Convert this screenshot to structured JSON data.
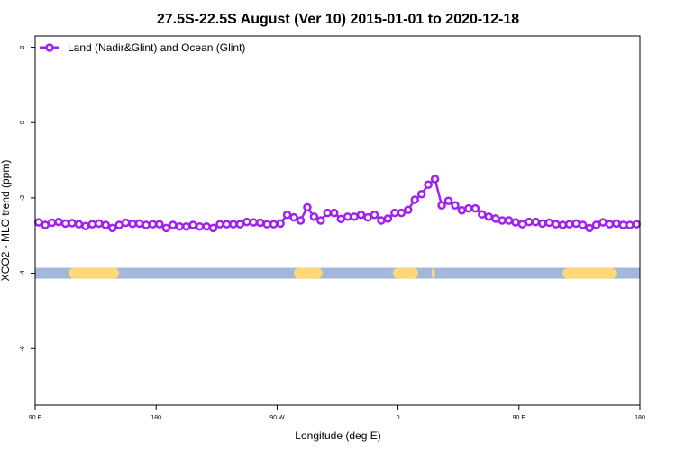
{
  "chart_data": {
    "type": "line",
    "title": "27.5S-22.5S August (Ver 10)   2015-01-01 to 2020-12-18",
    "xlabel": "Longitude (deg E)",
    "ylabel": "XCO2 - MLO trend (ppm)",
    "xlim": [
      90,
      450
    ],
    "ylim": [
      -7.5,
      2.3
    ],
    "x_ticks": [
      {
        "value": 90,
        "label": "90 E"
      },
      {
        "value": 162,
        "label": "180"
      },
      {
        "value": 234,
        "label": "90 W"
      },
      {
        "value": 306,
        "label": "0"
      },
      {
        "value": 378,
        "label": "90 E"
      },
      {
        "value": 450,
        "label": "180"
      }
    ],
    "y_ticks": [
      {
        "value": 2,
        "label": "2"
      },
      {
        "value": 0,
        "label": "0"
      },
      {
        "value": -2,
        "label": "-2"
      },
      {
        "value": -4,
        "label": "-4"
      },
      {
        "value": -6,
        "label": "-6"
      }
    ],
    "legend": {
      "position": "top-left"
    },
    "series": [
      {
        "name": "Land (Nadir&Glint) and Ocean (Glint)",
        "color": "#a020f0",
        "x": [
          92,
          96,
          100,
          104,
          108,
          112,
          116,
          120,
          124,
          128,
          132,
          136,
          140,
          144,
          148,
          152,
          156,
          160,
          164,
          168,
          172,
          176,
          180,
          184,
          188,
          192,
          196,
          200,
          204,
          208,
          212,
          216,
          220,
          224,
          228,
          232,
          236,
          240,
          244,
          248,
          252,
          256,
          260,
          264,
          268,
          272,
          276,
          280,
          284,
          288,
          292,
          296,
          300,
          304,
          308,
          312,
          316,
          320,
          324,
          328,
          332,
          336,
          340,
          344,
          348,
          352,
          356,
          360,
          364,
          368,
          372,
          376,
          380,
          384,
          388,
          392,
          396,
          400,
          404,
          408,
          412,
          416,
          420,
          424,
          428,
          432,
          436,
          440,
          444,
          448
        ],
        "values": [
          -2.65,
          -2.72,
          -2.66,
          -2.64,
          -2.68,
          -2.67,
          -2.7,
          -2.75,
          -2.7,
          -2.68,
          -2.72,
          -2.8,
          -2.72,
          -2.66,
          -2.69,
          -2.68,
          -2.72,
          -2.7,
          -2.7,
          -2.8,
          -2.72,
          -2.76,
          -2.76,
          -2.72,
          -2.76,
          -2.76,
          -2.8,
          -2.7,
          -2.7,
          -2.7,
          -2.7,
          -2.64,
          -2.65,
          -2.66,
          -2.7,
          -2.7,
          -2.68,
          -2.45,
          -2.52,
          -2.6,
          -2.25,
          -2.5,
          -2.6,
          -2.4,
          -2.4,
          -2.56,
          -2.5,
          -2.5,
          -2.45,
          -2.52,
          -2.45,
          -2.6,
          -2.55,
          -2.4,
          -2.4,
          -2.32,
          -2.05,
          -1.9,
          -1.65,
          -1.5,
          -2.2,
          -2.08,
          -2.2,
          -2.33,
          -2.28,
          -2.28,
          -2.44,
          -2.5,
          -2.55,
          -2.6,
          -2.6,
          -2.65,
          -2.7,
          -2.64,
          -2.64,
          -2.68,
          -2.66,
          -2.7,
          -2.72,
          -2.7,
          -2.68,
          -2.72,
          -2.8,
          -2.72,
          -2.65,
          -2.7,
          -2.68,
          -2.72,
          -2.72,
          -2.7
        ]
      }
    ],
    "surface_bar": {
      "y": -4,
      "ocean_color": "#a3b8d8",
      "land_color": "#ffd878",
      "land_segments": [
        [
          110,
          140
        ],
        [
          244,
          261
        ],
        [
          303,
          318
        ],
        [
          326,
          328
        ],
        [
          404,
          436
        ]
      ]
    }
  }
}
